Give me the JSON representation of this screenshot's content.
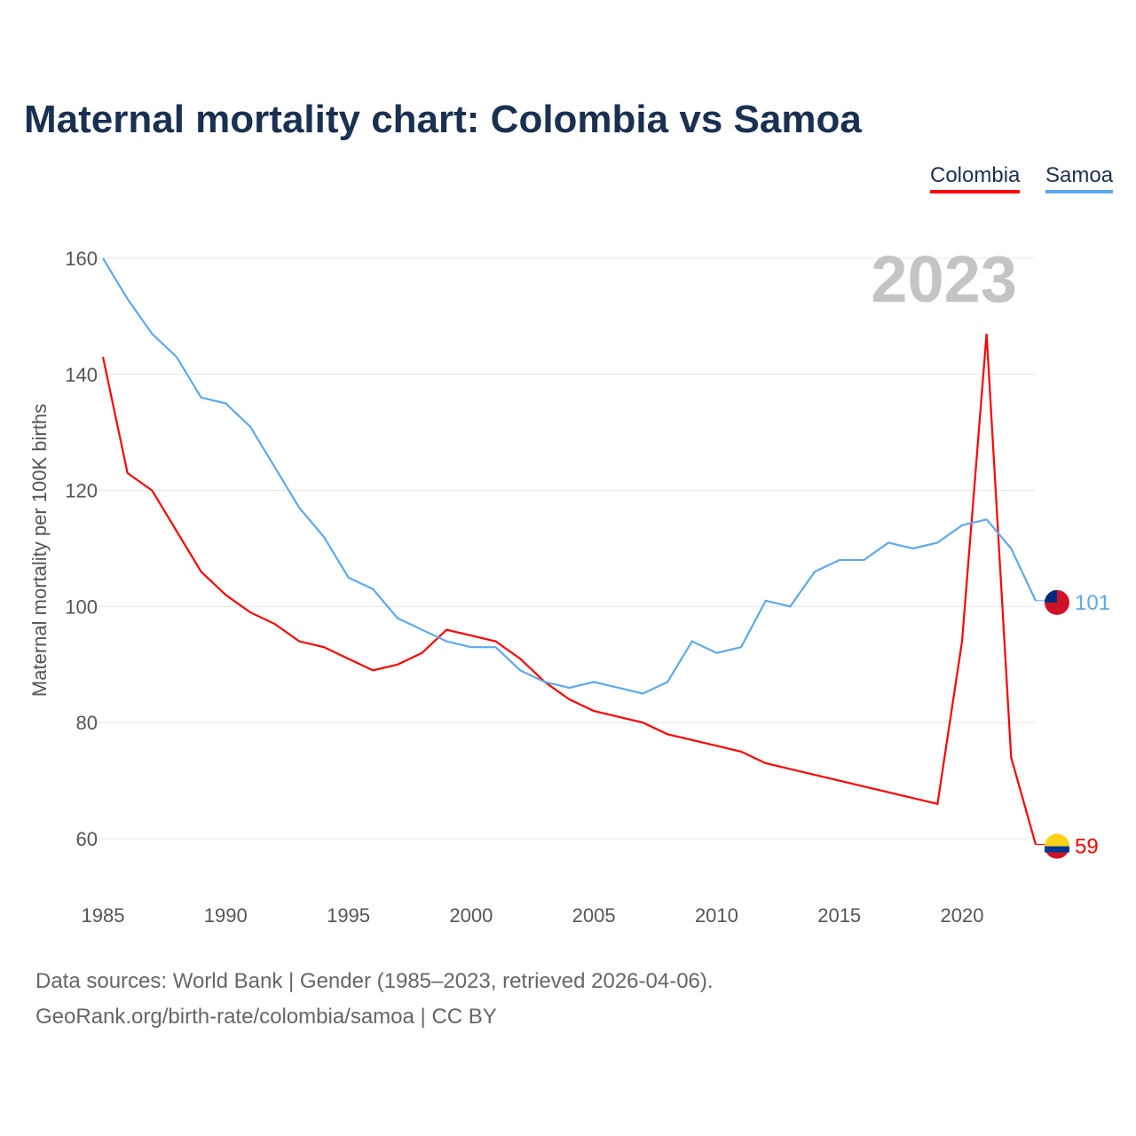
{
  "title": "Maternal mortality chart: Colombia vs Samoa",
  "year_label": "2023",
  "footer": {
    "line1": "Data sources: World Bank | Gender (1985–2023, retrieved 2026-04-06).",
    "line2": "GeoRank.org/birth-rate/colombia/samoa | CC BY"
  },
  "chart_data": {
    "type": "line",
    "title": "Maternal mortality chart: Colombia vs Samoa",
    "xlabel": "",
    "ylabel": "Maternal mortality per 100K births",
    "xlim": [
      1985,
      2023
    ],
    "ylim": [
      50,
      165
    ],
    "yticks": [
      60,
      80,
      100,
      120,
      140,
      160
    ],
    "xticks": [
      1985,
      1990,
      1995,
      2000,
      2005,
      2010,
      2015,
      2020
    ],
    "grid": true,
    "legend": "top-right",
    "x": [
      1985,
      1986,
      1987,
      1988,
      1989,
      1990,
      1991,
      1992,
      1993,
      1994,
      1995,
      1996,
      1997,
      1998,
      1999,
      2000,
      2001,
      2002,
      2003,
      2004,
      2005,
      2006,
      2007,
      2008,
      2009,
      2010,
      2011,
      2012,
      2013,
      2014,
      2015,
      2016,
      2017,
      2018,
      2019,
      2020,
      2021,
      2022,
      2023
    ],
    "series": [
      {
        "name": "Colombia",
        "color": "#ff0000",
        "end_label": "59",
        "values": [
          143,
          123,
          120,
          113,
          106,
          102,
          99,
          97,
          94,
          93,
          91,
          89,
          90,
          92,
          96,
          95,
          94,
          91,
          87,
          84,
          82,
          81,
          80,
          78,
          77,
          76,
          75,
          73,
          72,
          71,
          70,
          69,
          68,
          67,
          66,
          94,
          147,
          74,
          59
        ]
      },
      {
        "name": "Samoa",
        "color": "#5ea8ec",
        "end_label": "101",
        "values": [
          160,
          153,
          147,
          143,
          136,
          135,
          131,
          124,
          117,
          112,
          105,
          103,
          98,
          96,
          94,
          93,
          93,
          89,
          87,
          86,
          87,
          86,
          85,
          87,
          94,
          92,
          93,
          101,
          100,
          106,
          108,
          108,
          111,
          110,
          111,
          114,
          115,
          110,
          101
        ]
      }
    ]
  }
}
